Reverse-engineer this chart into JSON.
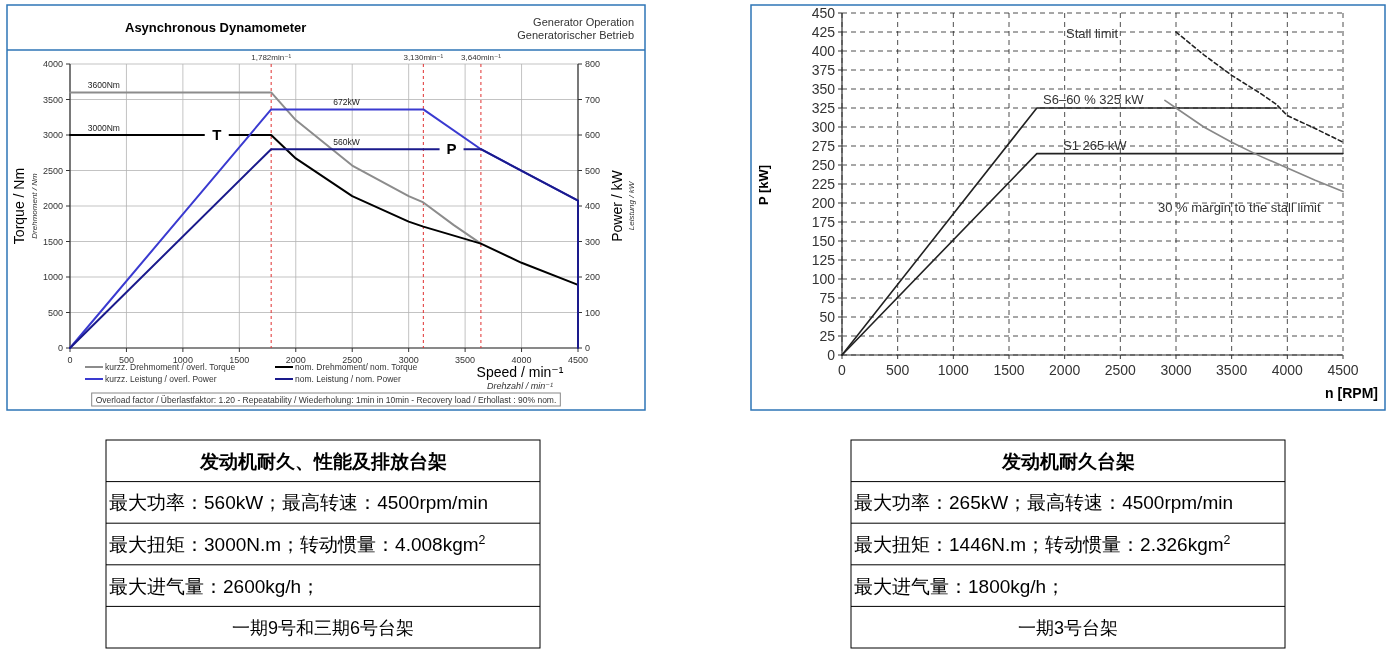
{
  "chart_data": [
    {
      "type": "line",
      "title": "Asynchronous Dynamometer",
      "xlabel": "Speed / min⁻¹",
      "ylabel": "Torque / Nm",
      "y2label": "Power / kW",
      "annotations": [
        "Generator Operation",
        "Generatorischer Betrieb",
        "Drehmoment / Nm",
        "Leistung / kW",
        "Drehzahl / min⁻¹",
        "Overload factor / Überlastfaktor: 1.20  -  Repeatability / Wiederholung:  1min  in 10min  -  Recovery load / Erhollast : 90% nom.",
        {
          "text": "3600Nm",
          "x": 300,
          "y": 3600
        },
        {
          "text": "3000Nm",
          "x": 300,
          "y": 3000
        },
        {
          "text": "672kW",
          "x": 2450,
          "y": 3360
        },
        {
          "text": "560kW",
          "x": 2450,
          "y": 2800
        },
        {
          "text": "T",
          "x": 1300,
          "y": 3000
        },
        {
          "text": "P",
          "x": 3380,
          "y": 2800
        }
      ],
      "xlim": [
        0,
        4500
      ],
      "xticks": [
        0,
        500,
        1000,
        1500,
        2000,
        2500,
        3000,
        3500,
        4000,
        4500
      ],
      "ylim": [
        0,
        4000
      ],
      "yticks": [
        0,
        500,
        1000,
        1500,
        2000,
        2500,
        3000,
        3500,
        4000
      ],
      "y2lim": [
        0,
        800
      ],
      "y2ticks": [
        0,
        100,
        200,
        300,
        400,
        500,
        600,
        700,
        800
      ],
      "grid": true,
      "legend": "bottom",
      "marker": "none",
      "ref_lines": [
        {
          "axis": "x",
          "value": 1782,
          "label": "1,782min⁻¹",
          "color": "#e03030",
          "line_style": "dashed"
        },
        {
          "axis": "x",
          "value": 3130,
          "label": "3,130min⁻¹",
          "color": "#e03030",
          "line_style": "dashed"
        },
        {
          "axis": "x",
          "value": 3640,
          "label": "3,640min⁻¹",
          "color": "#e03030",
          "line_style": "dashed"
        }
      ],
      "series": [
        {
          "name": "kurzz. Drehmoment / overl. Torque",
          "color": "#8c8c8c",
          "x": [
            0,
            1782,
            2000,
            2500,
            3000,
            3130,
            3400,
            3640
          ],
          "values": [
            3600,
            3600,
            3210,
            2570,
            2140,
            2050,
            1730,
            1470
          ]
        },
        {
          "name": "nom. Drehmoment/ nom. Torque",
          "color": "#000000",
          "x": [
            0,
            1782,
            2000,
            2500,
            3000,
            3130,
            3640,
            4000,
            4500
          ],
          "values": [
            3000,
            3000,
            2670,
            2140,
            1780,
            1710,
            1470,
            1200,
            890
          ]
        },
        {
          "name": "kurzz. Leistung / overl. Power",
          "color": "#3a3ad0",
          "axis": "y2",
          "x": [
            0,
            1782,
            3130,
            3640,
            4500
          ],
          "values": [
            0,
            672,
            672,
            560,
            415
          ]
        },
        {
          "name": "nom. Leistung / nom. Power",
          "color": "#1a1a8c",
          "axis": "y2",
          "x": [
            0,
            1782,
            3640,
            4500,
            4500
          ],
          "values": [
            0,
            560,
            560,
            415,
            0
          ]
        }
      ]
    },
    {
      "type": "line",
      "xlabel": "n [RPM]",
      "ylabel": "P [kW]",
      "annotations": [
        "Stall limit",
        "S6–60 %  325 kW",
        "S1  265 kW",
        "30 % margin to the stall limit"
      ],
      "xlim": [
        0,
        4500
      ],
      "xticks": [
        0,
        500,
        1000,
        1500,
        2000,
        2500,
        3000,
        3500,
        4000,
        4500
      ],
      "ylim": [
        0,
        450
      ],
      "yticks": [
        0,
        25,
        50,
        75,
        100,
        125,
        150,
        175,
        200,
        225,
        250,
        275,
        300,
        325,
        350,
        375,
        400,
        425,
        450
      ],
      "grid": true,
      "marker": "none",
      "series": [
        {
          "color": "#222222",
          "x": [
            0,
            1750,
            3900
          ],
          "values": [
            0,
            325,
            325
          ]
        },
        {
          "color": "#222222",
          "x": [
            0,
            1750,
            4500
          ],
          "values": [
            0,
            265,
            265
          ]
        },
        {
          "color": "#222222",
          "line_style": "dashed",
          "x": [
            3000,
            3250,
            3500,
            3750,
            3900,
            4000,
            4250,
            4500
          ],
          "values": [
            425,
            395,
            368,
            345,
            330,
            315,
            298,
            280
          ]
        },
        {
          "color": "#888888",
          "x": [
            2900,
            3000,
            3250,
            3500,
            3750,
            4000,
            4250,
            4500
          ],
          "values": [
            335,
            325,
            300,
            280,
            262,
            246,
            230,
            215
          ]
        }
      ]
    },
    {
      "type": "other",
      "title": "发动机耐久、性能及排放台架",
      "annotations": [
        "最大功率：560kW；最高转速：4500rpm/min",
        "最大扭矩：3000N.m；转动惯量：4.008kgm$^{2}$",
        "最大进气量：2600kg/h；",
        "一期9号和三期6号台架"
      ]
    },
    {
      "type": "other",
      "title": "发动机耐久台架",
      "annotations": [
        "最大功率：265kW；最高转速：4500rpm/min",
        "最大扭矩：1446N.m；转动惯量：2.326kgm$^{2}$",
        "最大进气量：1800kg/h；",
        "一期3号台架"
      ]
    }
  ]
}
